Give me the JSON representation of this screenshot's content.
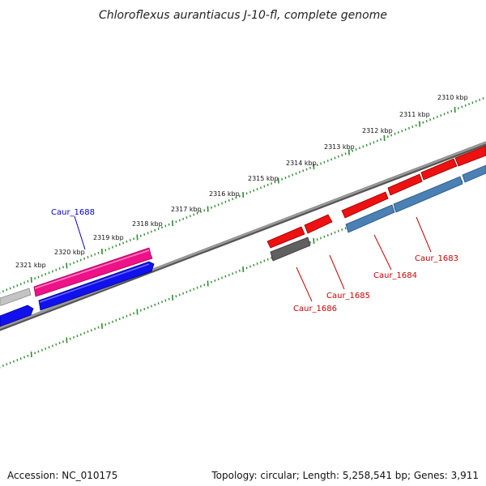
{
  "title": "Chloroflexus aurantiacus J-10-fl, complete genome",
  "footer": {
    "accession": "Accession: NC_010175",
    "topology": "Topology: circular; Length: 5,258,541 bp; Genes: 3,911"
  },
  "ticks": [
    {
      "label": "2310 kbp"
    },
    {
      "label": "2311 kbp"
    },
    {
      "label": "2312 kbp"
    },
    {
      "label": "2313 kbp"
    },
    {
      "label": "2314 kbp"
    },
    {
      "label": "2315 kbp"
    },
    {
      "label": "2316 kbp"
    },
    {
      "label": "2317 kbp"
    },
    {
      "label": "2318 kbp"
    },
    {
      "label": "2319 kbp"
    },
    {
      "label": "2320 kbp"
    },
    {
      "label": "2321 kbp"
    }
  ],
  "gene_labels": [
    {
      "label": "Caur_1688",
      "color": "#0000cc"
    },
    {
      "label": "Caur_1683",
      "color": "#cc0000"
    },
    {
      "label": "Caur_1684",
      "color": "#cc0000"
    },
    {
      "label": "Caur_1685",
      "color": "#cc0000"
    },
    {
      "label": "Caur_1686",
      "color": "#cc0000"
    }
  ],
  "colors": {
    "backbone": "#808080",
    "tick": "#2e8b2e",
    "cds_red": "#ee1111",
    "cds_blue": "#1111ee",
    "cds_pink": "#ee1188",
    "cds_steel": "#4a80b4",
    "cds_gray": "#b8b8b8",
    "cds_dark": "#606060"
  }
}
